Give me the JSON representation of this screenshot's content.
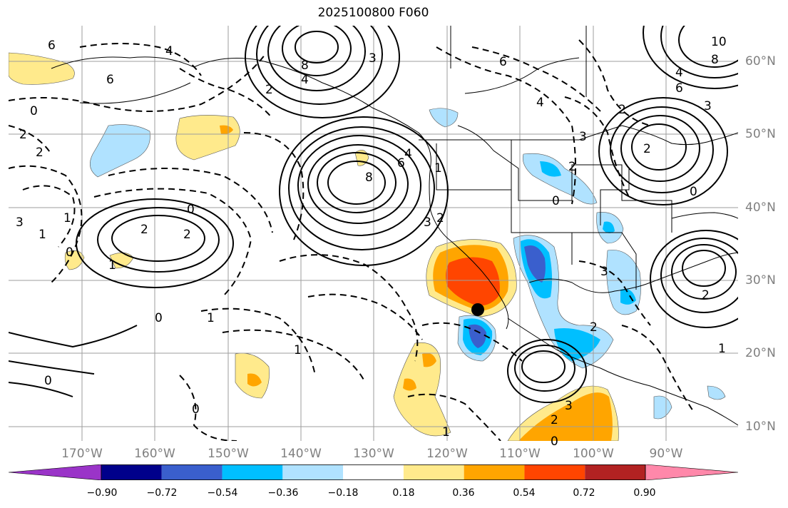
{
  "title": "2025100800 F060",
  "lat_labels": [
    "60°N",
    "50°N",
    "40°N",
    "30°N",
    "20°N",
    "10°N"
  ],
  "lon_labels": [
    "170°W",
    "160°W",
    "150°W",
    "140°W",
    "130°W",
    "120°W",
    "110°W",
    "100°W",
    "90°W"
  ],
  "colorbar": {
    "ticks": [
      "−0.90",
      "−0.72",
      "−0.54",
      "−0.36",
      "−0.18",
      "0.18",
      "0.36",
      "0.54",
      "0.72",
      "0.90"
    ],
    "colors": [
      "#9a34c8",
      "#00008b",
      "#3a5fcd",
      "#00bfff",
      "#b0e2ff",
      "#ffffff",
      "#ffea8c",
      "#ffa500",
      "#ff4500",
      "#b22222",
      "#ff88aa"
    ]
  },
  "contour_labels": [
    {
      "text": "6"
    },
    {
      "text": "4"
    },
    {
      "text": "6"
    },
    {
      "text": "3"
    },
    {
      "text": "4"
    },
    {
      "text": "8"
    },
    {
      "text": "2"
    },
    {
      "text": "0"
    },
    {
      "text": "2"
    },
    {
      "text": "2"
    },
    {
      "text": "0"
    },
    {
      "text": "1"
    },
    {
      "text": "0"
    },
    {
      "text": "1"
    },
    {
      "text": "3"
    },
    {
      "text": "2"
    },
    {
      "text": "2"
    },
    {
      "text": "1"
    },
    {
      "text": "0"
    },
    {
      "text": "1"
    },
    {
      "text": "1"
    },
    {
      "text": "0"
    },
    {
      "text": "0"
    },
    {
      "text": "6"
    },
    {
      "text": "8"
    },
    {
      "text": "4"
    },
    {
      "text": "2"
    },
    {
      "text": "3"
    },
    {
      "text": "1"
    },
    {
      "text": "2"
    },
    {
      "text": "3"
    },
    {
      "text": "0"
    },
    {
      "text": "3"
    },
    {
      "text": "2"
    },
    {
      "text": "2"
    },
    {
      "text": "0"
    },
    {
      "text": "6"
    },
    {
      "text": "4"
    },
    {
      "text": "4"
    },
    {
      "text": "6"
    },
    {
      "text": "8"
    },
    {
      "text": "10"
    },
    {
      "text": "3"
    },
    {
      "text": "2"
    },
    {
      "text": "2"
    },
    {
      "text": "3"
    },
    {
      "text": "2"
    },
    {
      "text": "1"
    },
    {
      "text": "0"
    },
    {
      "text": "1"
    }
  ],
  "marker": {
    "name": "point-marker",
    "lat": 26,
    "lon": -116
  }
}
